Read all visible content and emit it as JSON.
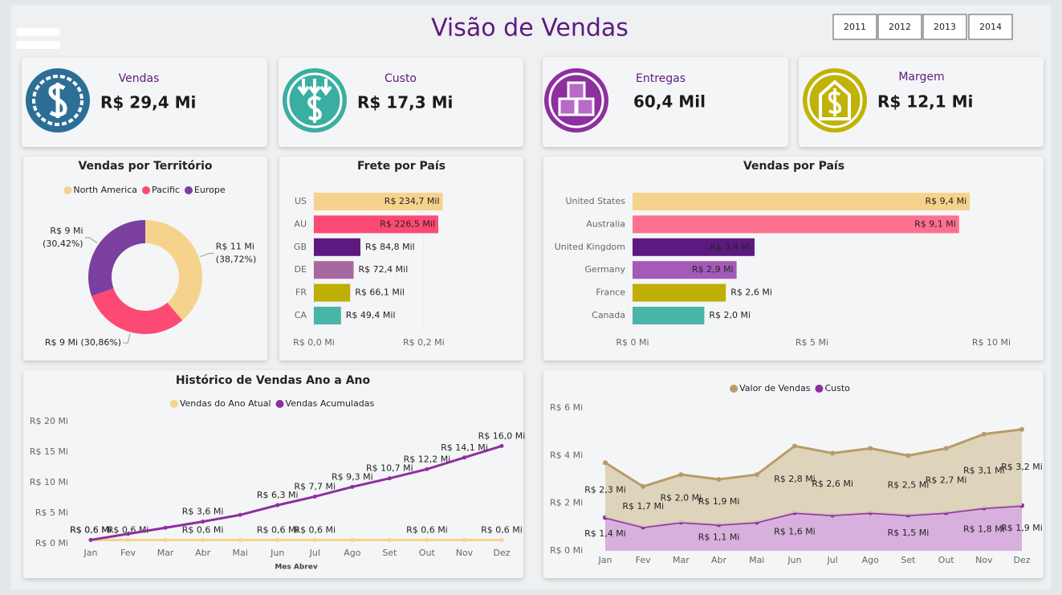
{
  "header": {
    "title": "Visão de Vendas"
  },
  "year_filter": {
    "years": [
      "2011",
      "2012",
      "2013",
      "2014"
    ]
  },
  "kpis": [
    {
      "label": "Vendas",
      "value": "R$ 29,4 Mi"
    },
    {
      "label": "Custo",
      "value": "R$ 17,3 Mi"
    },
    {
      "label": "Entregas",
      "value": "60,4 Mil"
    },
    {
      "label": "Margem",
      "value": "R$ 12,1 Mi"
    }
  ],
  "chart_data": [
    {
      "type": "donut",
      "title": "Vendas por Território",
      "categories": [
        "North America",
        "Pacific",
        "Europe"
      ],
      "values": [
        38.72,
        30.86,
        30.42
      ],
      "value_labels": [
        [
          "R$ 11 Mi",
          "(38,72%)"
        ],
        [
          "R$ 9 Mi (30,86%)"
        ],
        [
          "R$ 9 Mi",
          "(30,42%)"
        ]
      ],
      "colors": [
        "#f6d38c",
        "#fd4a74",
        "#7b3fa0"
      ],
      "legend": "top"
    },
    {
      "type": "hbar",
      "title": "Frete por País",
      "categories": [
        "US",
        "AU",
        "GB",
        "DE",
        "FR",
        "CA"
      ],
      "values": [
        0.2347,
        0.2265,
        0.0848,
        0.0724,
        0.0661,
        0.0494
      ],
      "value_labels": [
        "R$ 234,7 Mil",
        "R$ 226,5 Mil",
        "R$ 84,8 Mil",
        "R$ 72,4 Mil",
        "R$ 66,1 Mil",
        "R$ 49,4 Mil"
      ],
      "colors": [
        "#f6d38c",
        "#fd4a74",
        "#5c1a80",
        "#a7689f",
        "#bfae06",
        "#48b5a8"
      ],
      "xlim": [
        0,
        0.25
      ],
      "xticks": [
        {
          "value": 0,
          "label": "R$ 0,0 Mi"
        },
        {
          "value": 0.2,
          "label": "R$ 0,2 Mi"
        }
      ],
      "grid": true
    },
    {
      "type": "hbar",
      "title": "Vendas por País",
      "categories": [
        "United States",
        "Australia",
        "United Kingdom",
        "Germany",
        "France",
        "Canada"
      ],
      "values": [
        9.4,
        9.1,
        3.4,
        2.9,
        2.6,
        2.0
      ],
      "value_labels": [
        "R$ 9,4 Mi",
        "R$ 9,1 Mi",
        "R$ 3,4 Mi",
        "R$ 2,9 Mi",
        "R$ 2,6 Mi",
        "R$ 2,0 Mi"
      ],
      "colors": [
        "#f6d38c",
        "#fe7090",
        "#5c1a80",
        "#a35ab8",
        "#bfae06",
        "#48b5a8"
      ],
      "xlim": [
        0,
        10
      ],
      "xticks": [
        {
          "value": 0,
          "label": "R$ 0 Mi"
        },
        {
          "value": 5,
          "label": "R$ 5 Mi"
        },
        {
          "value": 10,
          "label": "R$ 10 Mi"
        }
      ]
    },
    {
      "type": "line",
      "title": "Histórico de Vendas Ano a Ano",
      "x_label": "Mes Abrev",
      "categories": [
        "Jan",
        "Fev",
        "Mar",
        "Abr",
        "Mai",
        "Jun",
        "Jul",
        "Ago",
        "Set",
        "Out",
        "Nov",
        "Dez"
      ],
      "series": [
        {
          "name": "Vendas do Ano Atual",
          "color": "#f6d38c",
          "values": [
            0.6,
            0.6,
            0.6,
            0.6,
            0.6,
            0.6,
            0.6,
            0.6,
            0.6,
            0.6,
            0.6,
            0.6
          ],
          "value_labels": [
            "R$ 0,6 Mi",
            "R$ 0,6 Mi",
            null,
            "R$ 0,6 Mi",
            null,
            "R$ 0,6 Mi",
            "R$ 0,6 Mi",
            null,
            null,
            "R$ 0,6 Mi",
            null,
            "R$ 0,6 Mi"
          ]
        },
        {
          "name": "Vendas Acumuladas",
          "color": "#8e2fa0",
          "values": [
            0.6,
            1.6,
            2.6,
            3.6,
            4.7,
            6.3,
            7.7,
            9.3,
            10.7,
            12.2,
            14.1,
            16.0
          ],
          "value_labels": [
            "R$ 0,6 Mi",
            null,
            null,
            "R$ 3,6 Mi",
            null,
            "R$ 6,3 Mi",
            "R$ 7,7 Mi",
            "R$ 9,3 Mi",
            "R$ 10,7 Mi",
            "R$ 12,2 Mi",
            "R$ 14,1 Mi",
            "R$ 16,0 Mi"
          ]
        }
      ],
      "ylim": [
        0,
        20
      ],
      "yticks": [
        {
          "value": 0,
          "label": "R$ 0 Mi"
        },
        {
          "value": 5,
          "label": "R$ 5 Mi"
        },
        {
          "value": 10,
          "label": "R$ 10 Mi"
        },
        {
          "value": 15,
          "label": "R$ 15 Mi"
        },
        {
          "value": 20,
          "label": "R$ 20 Mi"
        }
      ],
      "legend": "top"
    },
    {
      "type": "area",
      "stacked": true,
      "categories": [
        "Jan",
        "Fev",
        "Mar",
        "Abr",
        "Mai",
        "Jun",
        "Jul",
        "Ago",
        "Set",
        "Out",
        "Nov",
        "Dez"
      ],
      "series": [
        {
          "name": "Valor de Vendas",
          "color": "#b89b6a",
          "fill": "#dbd0b6",
          "values": [
            2.3,
            1.7,
            2.0,
            1.9,
            2.0,
            2.8,
            2.6,
            2.7,
            2.5,
            2.7,
            3.1,
            3.2
          ],
          "value_labels": [
            "R$ 2,3 Mi",
            "R$ 1,7 Mi",
            "R$ 2,0 Mi",
            "R$ 1,9 Mi",
            null,
            "R$ 2,8 Mi",
            "R$ 2,6 Mi",
            null,
            "R$ 2,5 Mi",
            "R$ 2,7 Mi",
            "R$ 3,1 Mi",
            "R$ 3,2 Mi"
          ]
        },
        {
          "name": "Custo",
          "color": "#8e2fa0",
          "fill": "#d4a8da",
          "values": [
            1.4,
            1.0,
            1.2,
            1.1,
            1.2,
            1.6,
            1.5,
            1.6,
            1.5,
            1.6,
            1.8,
            1.9
          ],
          "value_labels": [
            "R$ 1,4 Mi",
            null,
            null,
            "R$ 1,1 Mi",
            null,
            "R$ 1,6 Mi",
            null,
            null,
            "R$ 1,5 Mi",
            null,
            "R$ 1,8 Mi",
            "R$ 1,9 Mi"
          ]
        }
      ],
      "ylim": [
        0,
        6
      ],
      "yticks": [
        {
          "value": 0,
          "label": "R$ 0 Mi"
        },
        {
          "value": 2,
          "label": "R$ 2 Mi"
        },
        {
          "value": 4,
          "label": "R$ 4 Mi"
        },
        {
          "value": 6,
          "label": "R$ 6 Mi"
        }
      ],
      "legend": "top"
    }
  ]
}
